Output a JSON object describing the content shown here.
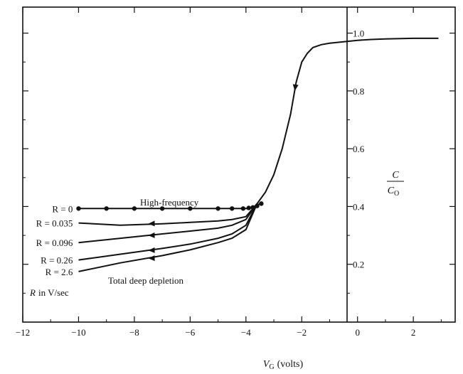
{
  "chart_data": {
    "type": "line",
    "xlabel": "V",
    "xlabel_sub": "G",
    "xlabel_units": "(volts)",
    "ylabel_num": "C",
    "ylabel_den": "C",
    "ylabel_den_sub": "O",
    "xlim": [
      -12,
      3.5
    ],
    "ylim": [
      0,
      1.09
    ],
    "x_ticks": [
      -12,
      -10,
      -8,
      -6,
      -4,
      -2,
      0,
      2
    ],
    "x_tick_labels": [
      "−12",
      "−10",
      "−8",
      "−6",
      "−4",
      "−2",
      "0",
      "2"
    ],
    "y_ticks": [
      0.2,
      0.4,
      0.6,
      0.8,
      1.0
    ],
    "y_tick_labels": [
      "0.2",
      "0.4",
      "0.6",
      "0.8",
      "1.0"
    ],
    "grid": false,
    "main_curve": {
      "x": [
        -3.6,
        -3.3,
        -3.0,
        -2.7,
        -2.4,
        -2.2,
        -2.0,
        -1.8,
        -1.6,
        -1.3,
        -1.0,
        -0.5,
        0,
        0.5,
        1.0,
        2.0,
        2.9
      ],
      "y": [
        0.41,
        0.45,
        0.51,
        0.6,
        0.72,
        0.83,
        0.9,
        0.93,
        0.95,
        0.96,
        0.965,
        0.97,
        0.975,
        0.978,
        0.98,
        0.982,
        0.982
      ]
    },
    "series": [
      {
        "name": "High-frequency",
        "label": "R = 0",
        "x": [
          -10,
          -9,
          -8.5,
          -7.5,
          -6.5,
          -5.5,
          -5,
          -4.5,
          -4.1,
          -3.9,
          -3.7,
          -3.5
        ],
        "y": [
          0.393,
          0.393,
          0.393,
          0.393,
          0.393,
          0.393,
          0.393,
          0.393,
          0.393,
          0.393,
          0.398,
          0.41
        ]
      },
      {
        "label": "R = 0.035",
        "x": [
          -10,
          -8.5,
          -7,
          -6,
          -5,
          -4.5,
          -4,
          -3.6
        ],
        "y": [
          0.343,
          0.335,
          0.34,
          0.345,
          0.35,
          0.355,
          0.365,
          0.41
        ]
      },
      {
        "label": "R = 0.096",
        "x": [
          -10,
          -8.5,
          -7,
          -6,
          -5,
          -4.5,
          -4,
          -3.6
        ],
        "y": [
          0.275,
          0.29,
          0.305,
          0.315,
          0.325,
          0.335,
          0.355,
          0.41
        ]
      },
      {
        "label": "R = 0.26",
        "x": [
          -10,
          -8.5,
          -7,
          -6,
          -5,
          -4.5,
          -4,
          -3.6
        ],
        "y": [
          0.215,
          0.235,
          0.255,
          0.27,
          0.29,
          0.305,
          0.335,
          0.41
        ]
      },
      {
        "name": "Total deep depletion",
        "label": "R = 2.6",
        "x": [
          -10,
          -8.5,
          -7,
          -6,
          -5,
          -4.5,
          -4,
          -3.6
        ],
        "y": [
          0.175,
          0.205,
          0.23,
          0.25,
          0.275,
          0.29,
          0.32,
          0.41
        ]
      }
    ],
    "dots": {
      "x": [
        -10,
        -9,
        -8,
        -7,
        -6,
        -5,
        -4.5,
        -4.1,
        -3.9,
        -3.75,
        -3.6,
        -3.45
      ],
      "y": [
        0.393,
        0.393,
        0.393,
        0.393,
        0.393,
        0.393,
        0.393,
        0.393,
        0.395,
        0.397,
        0.402,
        0.41
      ]
    },
    "annotations": {
      "high_frequency": "High-frequency",
      "deep_depletion": "Total deep depletion",
      "units_note": "R in V/sec",
      "r_label_prefix": "R",
      "r_label_units": "in V/sec"
    },
    "colors": {
      "line": "#111111",
      "background": "#ffffff"
    }
  }
}
